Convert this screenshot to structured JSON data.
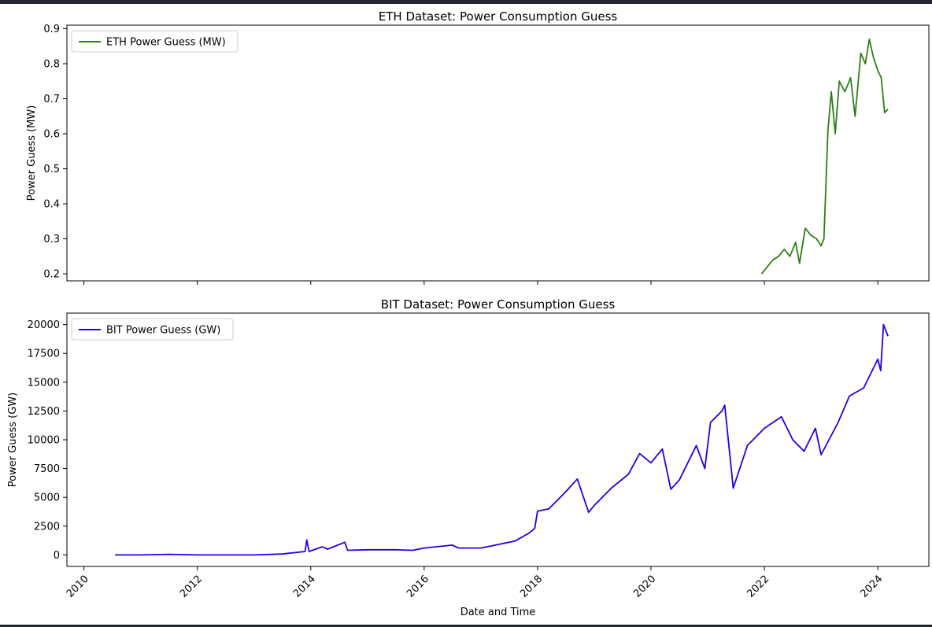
{
  "chart_data": [
    {
      "type": "line",
      "title": "ETH Dataset: Power Consumption Guess",
      "ylabel": "Power Guess (MW)",
      "xlabel": "",
      "xlim": [
        2009.7,
        2024.9
      ],
      "ylim": [
        0.18,
        0.91
      ],
      "yticks": [
        0.2,
        0.3,
        0.4,
        0.5,
        0.6,
        0.7,
        0.8,
        0.9
      ],
      "ytick_labels": [
        "0.2",
        "0.3",
        "0.4",
        "0.5",
        "0.6",
        "0.7",
        "0.8",
        "0.9"
      ],
      "xticks": [
        2010,
        2012,
        2014,
        2016,
        2018,
        2020,
        2022,
        2024
      ],
      "xtick_labels_shown": false,
      "grid": false,
      "legend": "upper-left",
      "color": "#2e7d18",
      "series": [
        {
          "name": "ETH Power Guess (MW)",
          "x": [
            2021.95,
            2022.05,
            2022.15,
            2022.25,
            2022.35,
            2022.45,
            2022.55,
            2022.62,
            2022.72,
            2022.82,
            2022.92,
            2023.0,
            2023.05,
            2023.12,
            2023.18,
            2023.25,
            2023.32,
            2023.42,
            2023.52,
            2023.6,
            2023.7,
            2023.78,
            2023.85,
            2023.92,
            2024.0,
            2024.06,
            2024.12,
            2024.18
          ],
          "y": [
            0.2,
            0.22,
            0.24,
            0.25,
            0.27,
            0.25,
            0.29,
            0.23,
            0.33,
            0.31,
            0.3,
            0.28,
            0.3,
            0.61,
            0.72,
            0.6,
            0.75,
            0.72,
            0.76,
            0.65,
            0.83,
            0.8,
            0.87,
            0.82,
            0.78,
            0.76,
            0.66,
            0.67
          ]
        }
      ]
    },
    {
      "type": "line",
      "title": "BIT Dataset: Power Consumption Guess",
      "ylabel": "Power Guess (GW)",
      "xlabel": "Date and Time",
      "xlim": [
        2009.7,
        2024.9
      ],
      "ylim": [
        -1000,
        21000
      ],
      "yticks": [
        0,
        2500,
        5000,
        7500,
        10000,
        12500,
        15000,
        17500,
        20000
      ],
      "ytick_labels": [
        "0",
        "2500",
        "5000",
        "7500",
        "10000",
        "12500",
        "15000",
        "17500",
        "20000"
      ],
      "xticks": [
        2010,
        2012,
        2014,
        2016,
        2018,
        2020,
        2022,
        2024
      ],
      "xtick_labels": [
        "2010",
        "2012",
        "2014",
        "2016",
        "2018",
        "2020",
        "2022",
        "2024"
      ],
      "grid": false,
      "legend": "upper-left",
      "color": "#2200e8",
      "series": [
        {
          "name": "BIT Power Guess (GW)",
          "x": [
            2010.55,
            2011.0,
            2011.5,
            2012.0,
            2012.5,
            2013.0,
            2013.5,
            2013.9,
            2013.93,
            2013.97,
            2014.2,
            2014.3,
            2014.6,
            2014.65,
            2015.0,
            2015.5,
            2015.8,
            2016.0,
            2016.5,
            2016.6,
            2017.0,
            2017.3,
            2017.6,
            2017.85,
            2017.95,
            2018.0,
            2018.2,
            2018.5,
            2018.7,
            2018.9,
            2019.0,
            2019.3,
            2019.6,
            2019.8,
            2020.0,
            2020.2,
            2020.35,
            2020.5,
            2020.8,
            2020.95,
            2021.05,
            2021.25,
            2021.3,
            2021.45,
            2021.7,
            2022.0,
            2022.3,
            2022.5,
            2022.7,
            2022.9,
            2023.0,
            2023.3,
            2023.5,
            2023.75,
            2024.0,
            2024.05,
            2024.1,
            2024.18
          ],
          "y": [
            0,
            0,
            50,
            0,
            0,
            0,
            80,
            300,
            1300,
            300,
            700,
            500,
            1100,
            400,
            450,
            450,
            400,
            600,
            850,
            600,
            600,
            900,
            1200,
            1900,
            2300,
            3800,
            4000,
            5500,
            6600,
            3700,
            4300,
            5800,
            7000,
            8800,
            8000,
            9200,
            5700,
            6500,
            9500,
            7500,
            11500,
            12500,
            13000,
            5800,
            9500,
            11000,
            12000,
            10000,
            9000,
            11000,
            8700,
            11500,
            13800,
            14500,
            17000,
            16000,
            20000,
            19000
          ]
        }
      ]
    }
  ]
}
